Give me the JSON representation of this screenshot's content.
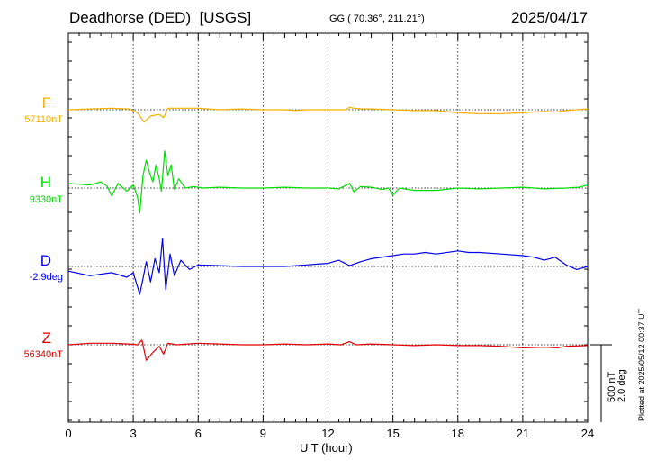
{
  "header": {
    "station": "Deadhorse (DED)",
    "network": "[USGS]",
    "coords": "GG ( 70.36°, 211.21°)",
    "date": "2025/04/17"
  },
  "side_note": "Plotted at 2025/05/12 00:37 UT",
  "scale_label": {
    "line1": "500 nT",
    "line2": "2.0 deg"
  },
  "colors": {
    "F": "#f0b000",
    "H": "#00dd00",
    "D": "#0000ee",
    "Z": "#e00000"
  },
  "components": [
    {
      "id": "F",
      "label": "F",
      "baseline": "57110nT"
    },
    {
      "id": "H",
      "label": "H",
      "baseline": "9330nT"
    },
    {
      "id": "D",
      "label": "D",
      "baseline": "-2.9deg"
    },
    {
      "id": "Z",
      "label": "Z",
      "baseline": "56340nT"
    }
  ],
  "chart_data": {
    "type": "line",
    "title": "Deadhorse (DED)  [USGS]",
    "xlabel": "U T (hour)",
    "ylabel": "",
    "xlim": [
      0,
      24
    ],
    "xticks": [
      "0",
      "3",
      "6",
      "9",
      "12",
      "15",
      "18",
      "21",
      "24"
    ],
    "grid": true,
    "vertical_grid_hours": [
      3,
      6,
      9,
      12,
      15,
      18,
      21
    ],
    "ylim_nT": [
      -1050,
      1050
    ],
    "scale_bar_nT": 500,
    "units": "offset from baseline, nT (D plotted at 500 nT per 2.0 deg)",
    "series": [
      {
        "name": "F",
        "baseline": "57110nT",
        "x": [
          0,
          1,
          2,
          2.8,
          3.2,
          3.5,
          3.8,
          4.2,
          4.4,
          4.6,
          5,
          6,
          7,
          8,
          9,
          10,
          10.5,
          11,
          12,
          12.8,
          13,
          13.2,
          13.6,
          14,
          15,
          16,
          17,
          18,
          19,
          20,
          21,
          22,
          22.5,
          23,
          24
        ],
        "y": [
          0,
          5,
          10,
          5,
          -20,
          -80,
          -40,
          -30,
          -50,
          10,
          10,
          10,
          0,
          5,
          0,
          0,
          -5,
          0,
          0,
          0,
          15,
          10,
          5,
          5,
          0,
          -5,
          -5,
          -20,
          -25,
          -25,
          -20,
          -10,
          -15,
          -5,
          5
        ]
      },
      {
        "name": "H",
        "baseline": "9330nT",
        "x": [
          0,
          1,
          1.5,
          1.8,
          2,
          2.3,
          2.7,
          3,
          3.2,
          3.3,
          3.45,
          3.6,
          3.75,
          3.9,
          4.05,
          4.2,
          4.3,
          4.45,
          4.6,
          4.75,
          4.9,
          5.1,
          5.4,
          5.8,
          6.2,
          7,
          8,
          9,
          10,
          11,
          12,
          12.5,
          13,
          13.2,
          13.5,
          14,
          14.5,
          14.8,
          15,
          15.3,
          16,
          17,
          18,
          19,
          20,
          21,
          22,
          23,
          23.6,
          24
        ],
        "y": [
          30,
          20,
          40,
          10,
          -50,
          30,
          -20,
          20,
          -60,
          -160,
          80,
          180,
          100,
          40,
          150,
          60,
          -20,
          240,
          80,
          150,
          -10,
          60,
          0,
          10,
          0,
          5,
          0,
          0,
          5,
          0,
          0,
          -5,
          30,
          -25,
          10,
          5,
          -10,
          0,
          -45,
          0,
          -15,
          -15,
          0,
          -5,
          0,
          5,
          -5,
          0,
          5,
          20
        ]
      },
      {
        "name": "D",
        "baseline": "-2.9deg",
        "x": [
          0,
          1,
          2,
          2.7,
          3,
          3.3,
          3.45,
          3.6,
          3.8,
          4,
          4.2,
          4.35,
          4.5,
          4.7,
          4.9,
          5.2,
          5.6,
          6,
          7,
          8,
          9,
          10,
          11,
          11.5,
          12,
          12.5,
          13,
          13.5,
          14,
          15,
          15.5,
          16,
          16.5,
          17,
          18,
          18.5,
          19,
          20,
          21,
          21.5,
          22,
          22.5,
          23,
          23.5,
          24
        ],
        "y": [
          -30,
          -60,
          -40,
          -70,
          -40,
          -180,
          -80,
          30,
          -100,
          50,
          -40,
          180,
          -150,
          80,
          -60,
          40,
          -20,
          10,
          5,
          0,
          0,
          0,
          10,
          15,
          20,
          40,
          5,
          30,
          50,
          70,
          80,
          80,
          90,
          80,
          100,
          90,
          90,
          80,
          70,
          60,
          40,
          60,
          10,
          -20,
          0
        ]
      },
      {
        "name": "Z",
        "baseline": "56340nT",
        "x": [
          0,
          1,
          2,
          2.8,
          3.2,
          3.4,
          3.6,
          3.9,
          4.2,
          4.4,
          4.6,
          5,
          6,
          7,
          8,
          9,
          10,
          11,
          12,
          12.6,
          13,
          13.3,
          14,
          15,
          16,
          17,
          18,
          19,
          20,
          21,
          22,
          22.6,
          23,
          24
        ],
        "y": [
          0,
          10,
          10,
          5,
          0,
          30,
          -100,
          -50,
          -10,
          -60,
          10,
          0,
          10,
          5,
          0,
          0,
          5,
          0,
          5,
          0,
          20,
          0,
          5,
          0,
          -5,
          0,
          -5,
          -5,
          -10,
          -20,
          -15,
          -20,
          -10,
          -5
        ]
      }
    ]
  }
}
